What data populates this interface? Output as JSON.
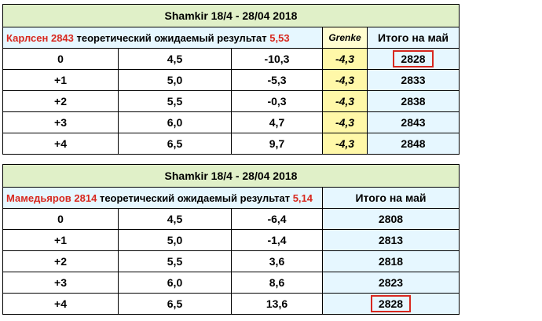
{
  "carlsen": {
    "title": "Shamkir 18/4 - 28/04 2018",
    "player_name": "Карлсен",
    "rating": "2843",
    "expected_label": "теоретический ожидаемый результат",
    "expected_value": "5,53",
    "grenke_header": "Grenke",
    "total_header": "Итого на май",
    "rows": [
      {
        "delta": "0",
        "score": "4,5",
        "change": "-10,3",
        "grenke": "-4,3",
        "total": "2828",
        "highlight": true
      },
      {
        "delta": "+1",
        "score": "5,0",
        "change": "-5,3",
        "grenke": "-4,3",
        "total": "2833"
      },
      {
        "delta": "+2",
        "score": "5,5",
        "change": "-0,3",
        "grenke": "-4,3",
        "total": "2838"
      },
      {
        "delta": "+3",
        "score": "6,0",
        "change": "4,7",
        "grenke": "-4,3",
        "total": "2843"
      },
      {
        "delta": "+4",
        "score": "6,5",
        "change": "9,7",
        "grenke": "-4,3",
        "total": "2848"
      }
    ]
  },
  "mamedyarov": {
    "title": "Shamkir 18/4 - 28/04 2018",
    "player_name": "Мамедьяров",
    "rating": "2814",
    "expected_label": "теоретический ожидаемый результат",
    "expected_value": "5,14",
    "total_header": "Итого на май",
    "rows": [
      {
        "delta": "0",
        "score": "4,5",
        "change": "-6,4",
        "total": "2808"
      },
      {
        "delta": "+1",
        "score": "5,0",
        "change": "-1,4",
        "total": "2813"
      },
      {
        "delta": "+2",
        "score": "5,5",
        "change": "3,6",
        "total": "2818"
      },
      {
        "delta": "+3",
        "score": "6,0",
        "change": "8,6",
        "total": "2823"
      },
      {
        "delta": "+4",
        "score": "6,5",
        "change": "13,6",
        "total": "2828",
        "highlight": true
      }
    ]
  },
  "colors": {
    "title_bg": "#e0f0c8",
    "header_bg": "#e6f7ff",
    "grenke_bg": "#fff8a8",
    "accent_red": "#d8281f"
  }
}
